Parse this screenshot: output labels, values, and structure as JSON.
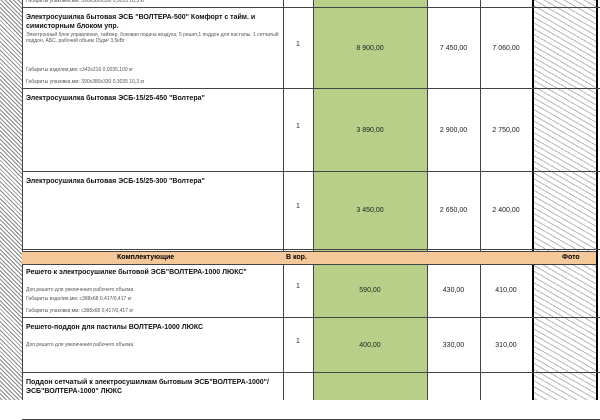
{
  "rows": [
    {
      "title": "",
      "desc": "",
      "dims1": "",
      "dims2": "Габариты упаковки,мм: 390х380х330  0,3035 10,3 кг",
      "qty": "",
      "price": "",
      "p2": "",
      "p3": ""
    },
    {
      "title": "Электросушилка бытовая ЭСБ \"ВОЛТЕРА-500\" Комфорт с тайм. и симисторным блоком упр.",
      "desc": "Электронный блок управления, таймер, боковая подача воздуха, 5 решет,1 поддон для пастилы, 1 сетчатый поддон, АБС, рабочий объем 15дм² 3,5кВт",
      "dims1": "Габариты изделия,мм: с342х216  0,0035,100 кг",
      "dims2": "Габариты упаковки,мм: 390х380х330  0,3035 10,3 кг",
      "qty": "1",
      "price": "8 900,00",
      "p2": "7 450,00",
      "p3": "7 060,00"
    },
    {
      "title": "Электросушилка бытовая ЭСБ-15/25-450 \"Волтера\"",
      "desc": "",
      "dims1": "",
      "dims2": "",
      "qty": "1",
      "price": "3 890,00",
      "p2": "2 900,00",
      "p3": "2 750,00"
    },
    {
      "title": "Электросушилка бытовая ЭСБ-15/25-300 \"Волтера\"",
      "desc": "",
      "dims1": "",
      "dims2": "",
      "qty": "1",
      "price": "3 450,00",
      "p2": "2 650,00",
      "p3": "2 400,00"
    },
    {
      "title": "Решето к электросушилке бытовой ЭСБ\"ВОЛТЕРА-1000 ЛЮКС\"",
      "desc": "Доп.решето для увеличения рабочего объема",
      "dims1": "Габариты изделия,мм: с388х68  0,417/0,417 кг",
      "dims2": "Габариты упаковки,мм: с388х68  0,417/0,417 кг",
      "qty": "1",
      "price": "590,00",
      "p2": "430,00",
      "p3": "410,00"
    },
    {
      "title": "Решето-поддон для пастилы ВОЛТЕРА-1000 ЛЮКС",
      "desc": "Доп.решето для увеличения рабочего объема",
      "dims1": "",
      "dims2": "",
      "qty": "1",
      "price": "400,00",
      "p2": "330,00",
      "p3": "310,00"
    },
    {
      "title": "Поддон сетчатый к электросушилкам бытовым ЭСБ\"ВОЛТЕРА-1000\"/ЭСБ\"ВОЛТЕРА-1000\" ЛЮКС",
      "desc": "",
      "dims1": "",
      "dims2": "",
      "qty": "",
      "price": "",
      "p2": "",
      "p3": ""
    }
  ],
  "section": {
    "label": "Комплектующие",
    "box": "В кор.",
    "photo": "Фото"
  },
  "colors": {
    "price_bg": "#b8cf8a",
    "section_bg": "#f5c89a"
  }
}
